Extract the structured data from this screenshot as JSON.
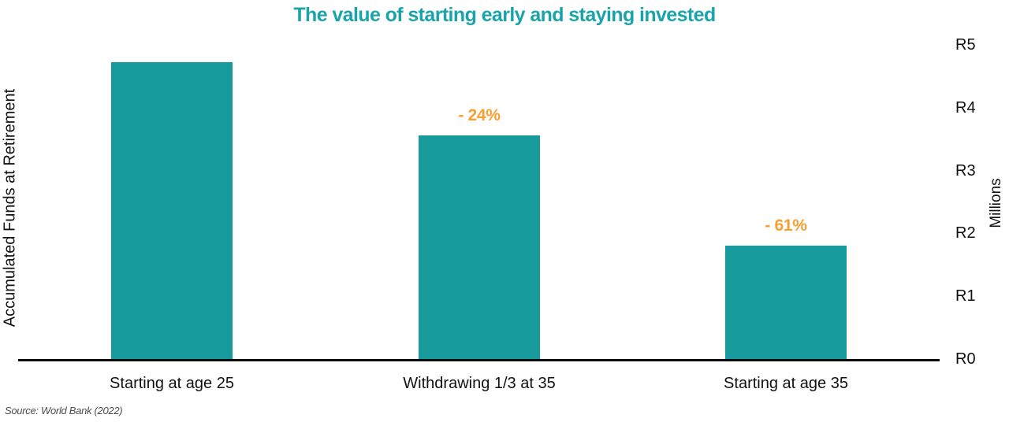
{
  "title": "The value of starting early and staying invested",
  "source": "Source: World Bank (2022)",
  "colors": {
    "bar": "#169a9b",
    "title": "#1aa4aa",
    "annotation": "#f89f30",
    "axis": "#0d0d0d",
    "text": "#111111",
    "source_text": "#4d4d4d"
  },
  "chart_data": {
    "type": "bar",
    "title": "The value of starting early and staying invested",
    "categories": [
      "Starting at age 25",
      "Withdrawing 1/3 at 35",
      "Starting at age 35"
    ],
    "values": [
      4.72,
      3.56,
      1.81
    ],
    "annotations": [
      "",
      "- 24%",
      "- 61%"
    ],
    "xlabel": "",
    "ylabel_left": "Accumulated Funds at Retirement",
    "ylabel_right": "Millions",
    "yticks": [
      "R0",
      "R1",
      "R2",
      "R3",
      "R4",
      "R5"
    ],
    "ytick_values": [
      0,
      1,
      2,
      3,
      4,
      5
    ],
    "ylim": [
      0,
      5
    ],
    "grid": false,
    "legend": false,
    "currency_prefix": "R",
    "units": "Millions"
  }
}
